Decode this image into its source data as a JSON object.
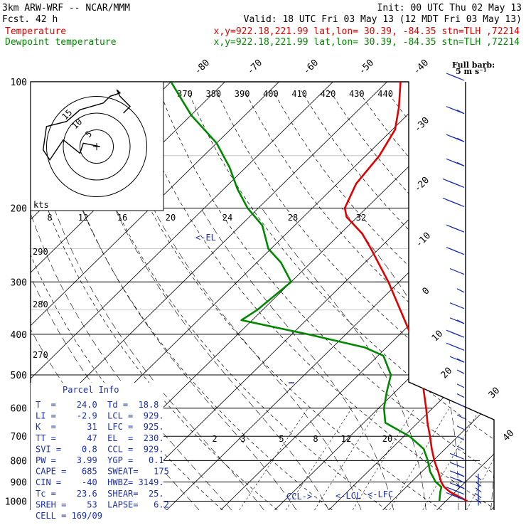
{
  "header": {
    "model": "3km ARW-WRF -- NCAR/MMM",
    "init": "Init: 00 UTC Thu 02 May 13",
    "fcst": "Fcst.   42 h",
    "valid": "Valid: 18 UTC Fri 03 May 13 (12 MDT Fri 03 May 13)",
    "temp_label": "Temperature",
    "dew_label": "Dewpoint temperature",
    "loc_temp": "x,y=922.18,221.99   lat,lon= 30.39, -84.35  stn=TLH ,72214",
    "loc_dew": "x,y=922.18,221.99   lat,lon= 30.39, -84.35  stn=TLH ,72214",
    "barb_title": "Full barb:",
    "barb_units": "5 m s⁻¹"
  },
  "colors": {
    "temperature": "#e00000",
    "dewpoint": "#008800",
    "parcel_info": "#1c2fb0",
    "grid": "#000000"
  },
  "chart_data": {
    "type": "line",
    "title": "",
    "ylabel": "",
    "xlabel": "",
    "pressure_levels": [
      "100",
      "200",
      "300",
      "400",
      "500",
      "600",
      "700",
      "800",
      "900",
      "1000"
    ],
    "temperature_axis_labels": [
      "-80",
      "-70",
      "-60",
      "-50",
      "-40",
      "-30",
      "-20",
      "-10",
      "0",
      "10",
      "20",
      "30",
      "40"
    ],
    "theta_e_labels": [
      "370",
      "380",
      "390",
      "400",
      "410",
      "420",
      "430",
      "440"
    ],
    "theta_labels": [
      "290",
      "280",
      "270"
    ],
    "mixing_ratio_labels_upper": [
      "8",
      "12",
      "16",
      "20",
      "24",
      "28",
      "32"
    ],
    "mixing_ratio_labels_lower": [
      "2",
      "3",
      "5",
      "8",
      "12",
      "20"
    ],
    "series": [
      {
        "name": "Temperature",
        "points": [
          {
            "p": 1000,
            "t": 24.0
          },
          {
            "p": 950,
            "t": 19.0
          },
          {
            "p": 925,
            "t": 17.0
          },
          {
            "p": 900,
            "t": 15.5
          },
          {
            "p": 850,
            "t": 13.0
          },
          {
            "p": 800,
            "t": 10.2
          },
          {
            "p": 750,
            "t": 7.5
          },
          {
            "p": 700,
            "t": 4.8
          },
          {
            "p": 650,
            "t": 1.8
          },
          {
            "p": 600,
            "t": -1.2
          },
          {
            "p": 550,
            "t": -4.6
          },
          {
            "p": 500,
            "t": -8.3
          },
          {
            "p": 450,
            "t": -12.8
          },
          {
            "p": 400,
            "t": -18.0
          },
          {
            "p": 350,
            "t": -24.5
          },
          {
            "p": 300,
            "t": -32.0
          },
          {
            "p": 270,
            "t": -37.5
          },
          {
            "p": 250,
            "t": -41.5
          },
          {
            "p": 230,
            "t": -46.0
          },
          {
            "p": 210,
            "t": -52.0
          },
          {
            "p": 200,
            "t": -54.0
          },
          {
            "p": 175,
            "t": -56.5
          },
          {
            "p": 150,
            "t": -57.5
          },
          {
            "p": 130,
            "t": -59.5
          },
          {
            "p": 115,
            "t": -63.0
          },
          {
            "p": 100,
            "t": -67.5
          }
        ]
      },
      {
        "name": "Dewpoint temperature",
        "points": [
          {
            "p": 1000,
            "t": 18.8
          },
          {
            "p": 950,
            "t": 17.2
          },
          {
            "p": 925,
            "t": 16.5
          },
          {
            "p": 900,
            "t": 14.5
          },
          {
            "p": 850,
            "t": 11.5
          },
          {
            "p": 800,
            "t": 9.0
          },
          {
            "p": 750,
            "t": 6.0
          },
          {
            "p": 700,
            "t": 1.0
          },
          {
            "p": 650,
            "t": -6.0
          },
          {
            "p": 600,
            "t": -9.0
          },
          {
            "p": 550,
            "t": -11.5
          },
          {
            "p": 500,
            "t": -14.0
          },
          {
            "p": 450,
            "t": -19.0
          },
          {
            "p": 430,
            "t": -24.0
          },
          {
            "p": 400,
            "t": -37.0
          },
          {
            "p": 370,
            "t": -52.0
          },
          {
            "p": 350,
            "t": -51.0
          },
          {
            "p": 300,
            "t": -50.0
          },
          {
            "p": 270,
            "t": -55.5
          },
          {
            "p": 250,
            "t": -60.5
          },
          {
            "p": 220,
            "t": -66.0
          },
          {
            "p": 200,
            "t": -72.0
          },
          {
            "p": 180,
            "t": -77.5
          },
          {
            "p": 160,
            "t": -83.0
          },
          {
            "p": 140,
            "t": -90.0
          },
          {
            "p": 120,
            "t": -100.0
          },
          {
            "p": 100,
            "t": -110.0
          }
        ]
      }
    ],
    "annotations": [
      "<-EL",
      "CCL->",
      "<-LCL",
      "<-LFC"
    ],
    "hodograph": {
      "units_label": "kts",
      "ring_labels": [
        "5",
        "10",
        "15"
      ],
      "trace": [
        [
          2,
          0
        ],
        [
          -8,
          -2
        ],
        [
          -10,
          4
        ],
        [
          -20,
          -4
        ],
        [
          -28,
          8
        ],
        [
          -32,
          2
        ],
        [
          -30,
          -12
        ],
        [
          -18,
          -15
        ],
        [
          -10,
          -22
        ],
        [
          4,
          -26
        ],
        [
          8,
          -30
        ],
        [
          14,
          -32
        ],
        [
          12,
          -34
        ],
        [
          14,
          -30
        ],
        [
          20,
          -24
        ],
        [
          16,
          -20
        ]
      ]
    },
    "parcel_info": {
      "title": "Parcel Info",
      "rows": [
        "T  =    24.0  Td =  18.8",
        "LI =    -2.9  LCL =  929.",
        "K  =      31  LFC =  925.",
        "TT =      47  EL  =  230.",
        "SVI =    0.8  CCL =  929.",
        "PW =    3.99  YGP =   0.1",
        "CAPE =   685  SWEAT=   175",
        "CIN =    -40  HWBZ= 3149.",
        "Tc =    23.6  SHEAR=  25.",
        "SREH =    53  LAPSE=   6.2",
        "CELL = 169/09"
      ]
    },
    "wind_barbs": {
      "pressures": [
        100,
        120,
        140,
        160,
        180,
        200,
        230,
        260,
        290,
        320,
        350,
        380,
        410,
        440,
        470,
        500,
        540,
        570,
        600,
        640,
        680,
        720,
        760,
        800,
        840,
        880,
        910,
        940,
        970,
        1000
      ],
      "speed_ms": [
        12,
        13,
        14,
        14,
        15,
        15,
        12,
        10,
        6,
        3,
        5,
        9,
        10,
        10,
        9,
        2,
        1,
        2,
        3,
        3,
        3,
        4,
        4,
        5,
        6,
        8,
        8,
        9,
        10,
        10
      ]
    }
  }
}
